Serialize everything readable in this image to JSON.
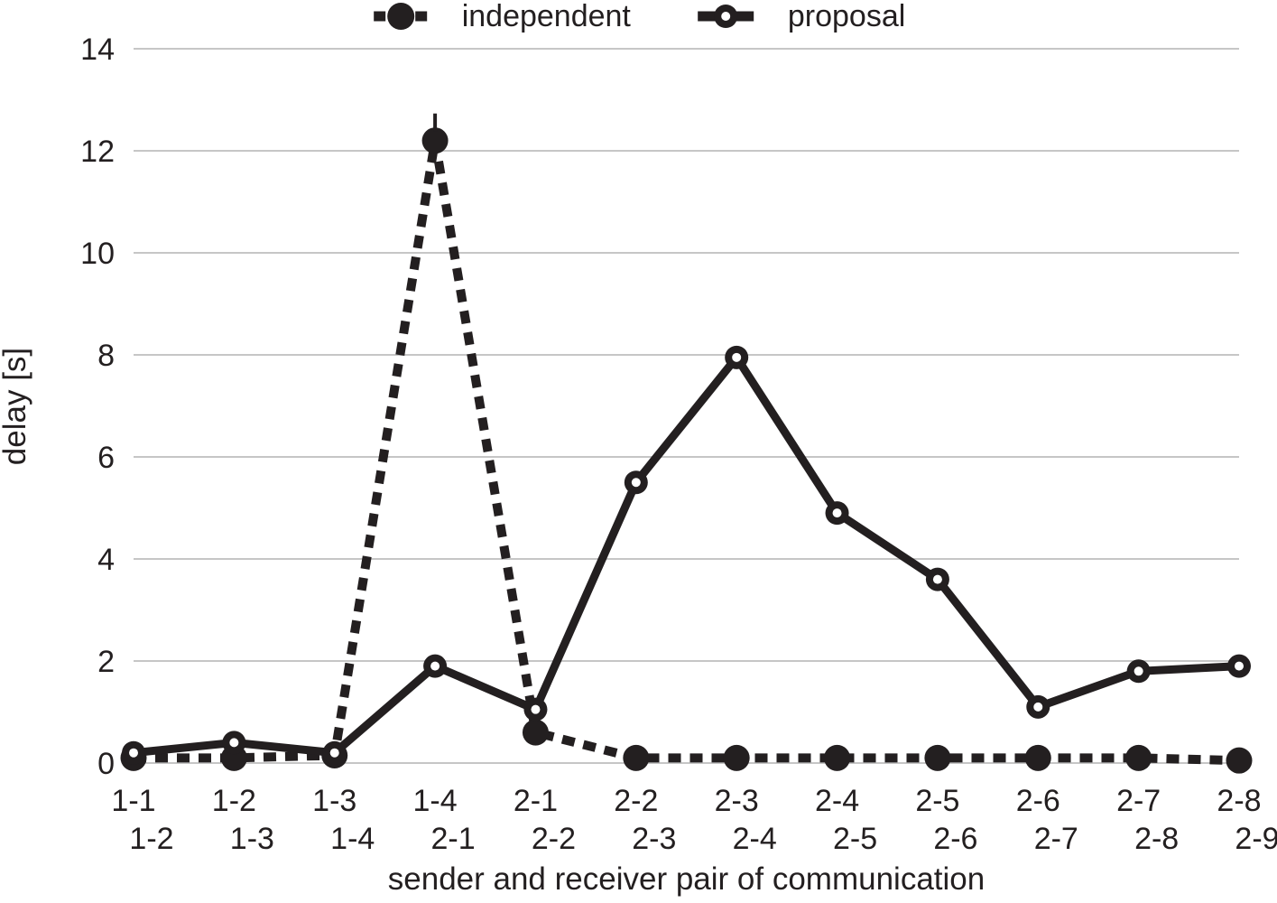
{
  "chart_data": {
    "type": "line",
    "title": "",
    "xlabel": "sender and receiver pair of communication",
    "ylabel": "delay [s]",
    "ylim": [
      0,
      14
    ],
    "yticks": [
      0,
      2,
      4,
      6,
      8,
      10,
      12,
      14
    ],
    "grid": "horizontal",
    "legend_position": "top-center",
    "categories_line1": [
      "1-1",
      "1-2",
      "1-3",
      "1-4",
      "2-1",
      "2-2",
      "2-3",
      "2-4",
      "2-5",
      "2-6",
      "2-7",
      "2-8"
    ],
    "categories_line2": [
      "1-2",
      "1-3",
      "1-4",
      "2-1",
      "2-2",
      "2-3",
      "2-4",
      "2-5",
      "2-6",
      "2-7",
      "2-8",
      "2-9"
    ],
    "series": [
      {
        "name": "independent",
        "line_style": "dashed",
        "marker": "filled-circle",
        "values": [
          0.1,
          0.1,
          0.15,
          12.2,
          0.6,
          0.1,
          0.1,
          0.1,
          0.1,
          0.1,
          0.1,
          0.05
        ]
      },
      {
        "name": "proposal",
        "line_style": "solid",
        "marker": "open-circle",
        "values": [
          0.2,
          0.4,
          0.2,
          1.9,
          1.05,
          5.5,
          7.95,
          4.9,
          3.6,
          1.1,
          1.8,
          1.9
        ]
      }
    ],
    "peak_annotation": {
      "series_index": 0,
      "point_index": 3,
      "spike_height": 20
    },
    "colors": {
      "ink": "#231f20",
      "grid": "#c6c6c6",
      "background": "#ffffff",
      "marker_hole": "#ffffff"
    }
  }
}
